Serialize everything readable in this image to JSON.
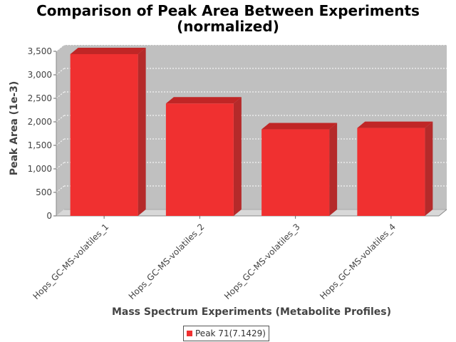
{
  "chart_data": {
    "type": "bar",
    "title": [
      "Comparison of Peak Area Between Experiments",
      "(normalized)"
    ],
    "xlabel": "Mass Spectrum Experiments (Metabolite Profiles)",
    "ylabel": "Peak Area (1e-3)",
    "categories": [
      "Hops_GC-MS-volatiles_1",
      "Hops_GC-MS-volatiles_2",
      "Hops_GC-MS-volatiles_3",
      "Hops_GC-MS-volatiles_4"
    ],
    "series": [
      {
        "name": "Peak 71(7.1429)",
        "values": [
          3440,
          2390,
          1840,
          1870
        ]
      }
    ],
    "ylim": [
      0,
      3500
    ],
    "yticks": [
      0,
      500,
      1000,
      1500,
      2000,
      2500,
      3000,
      3500
    ],
    "ytick_labels": [
      "0",
      "500",
      "1,000",
      "1,500",
      "2,000",
      "2,500",
      "3,000",
      "3,500"
    ],
    "grid": true,
    "legend_position": "bottom-center",
    "style": "3d",
    "colors": {
      "bar_front": "#f03030",
      "bar_top": "#c02626",
      "bar_side": "#b52a2a",
      "plot_back": "#c0c0c0",
      "plot_floor": "#d8d8d8",
      "grid": "#ffffff"
    }
  }
}
